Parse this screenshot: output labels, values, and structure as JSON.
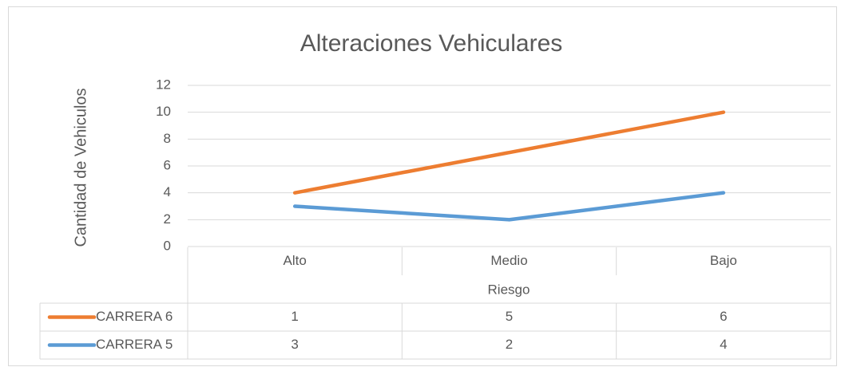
{
  "chart_data": {
    "type": "line",
    "stacked": true,
    "title": "Alteraciones Vehiculares",
    "x_label": "Riesgo",
    "y_label": "Cantidad de Vehiculos",
    "categories": [
      "Alto",
      "Medio",
      "Bajo"
    ],
    "series": [
      {
        "name": "CARRERA 6",
        "color": "#ed7d31",
        "values": [
          1,
          5,
          6
        ]
      },
      {
        "name": "CARRERA 5",
        "color": "#5b9bd5",
        "values": [
          3,
          2,
          4
        ]
      }
    ],
    "ylim": [
      0,
      12
    ],
    "yticks": [
      0,
      2,
      4,
      6,
      8,
      10,
      12
    ],
    "grid": true,
    "data_table": true
  }
}
